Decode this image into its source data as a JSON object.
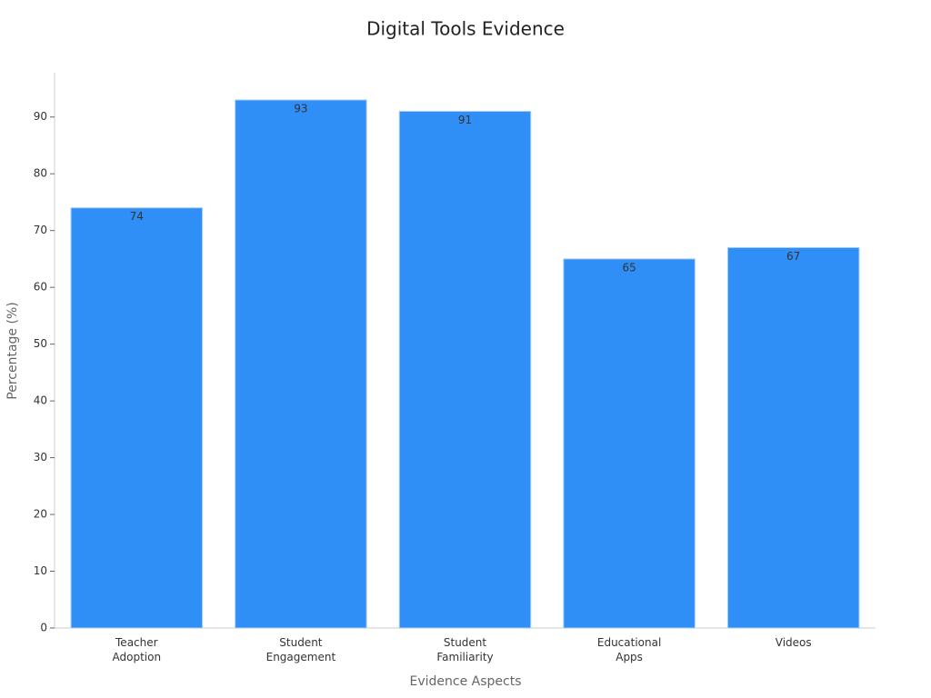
{
  "chart_data": {
    "type": "bar",
    "title": "Digital Tools Evidence",
    "x_label": "Evidence Aspects",
    "y_label": "Percentage (%)",
    "categories": [
      "Teacher\nAdoption",
      "Student\nEngagement",
      "Student\nFamiliarity",
      "Educational\nApps",
      "Videos"
    ],
    "values": [
      74,
      93,
      91,
      65,
      67
    ],
    "color": "#2f8ff7",
    "ylim": [
      0,
      97.8
    ],
    "yticks": [
      0,
      10,
      20,
      30,
      40,
      50,
      60,
      70,
      80,
      90
    ]
  }
}
